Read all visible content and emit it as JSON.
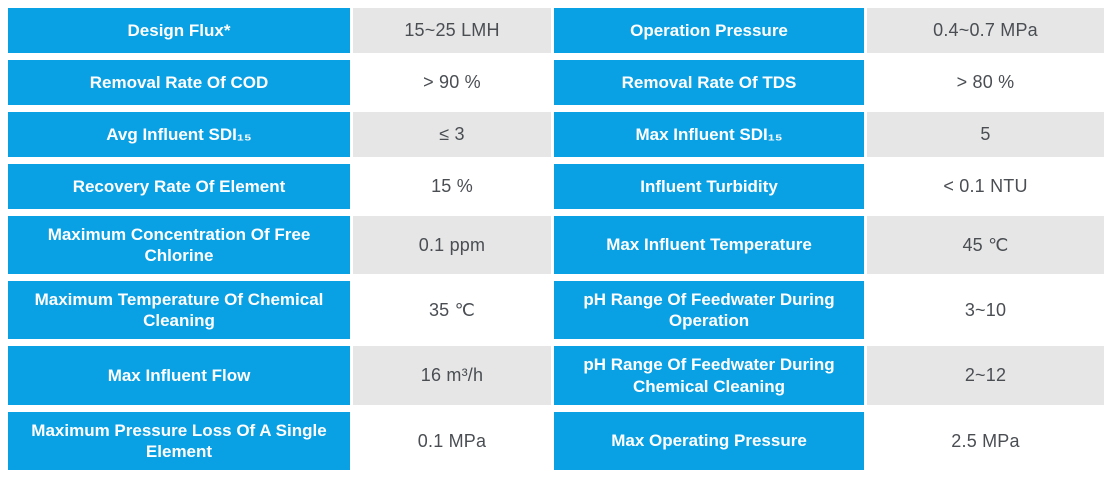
{
  "colors": {
    "label_background": "#0aa0e4",
    "label_text": "#ffffff",
    "value_shaded_background": "#e6e6e6",
    "value_text": "#4a4e53",
    "page_background": "#ffffff"
  },
  "table": {
    "description": "Membrane element technical specification table",
    "rows": [
      {
        "label1": "Design Flux*",
        "value1": "15~25 LMH",
        "label2": "Operation Pressure",
        "value2": "0.4~0.7 MPa"
      },
      {
        "label1": "Removal Rate Of COD",
        "value1": "> 90 %",
        "label2": "Removal Rate Of TDS",
        "value2": "> 80 %"
      },
      {
        "label1": "Avg Influent SDI₁₅",
        "value1": "≤ 3",
        "label2": "Max Influent SDI₁₅",
        "value2": "5"
      },
      {
        "label1": "Recovery Rate Of Element",
        "value1": "15 %",
        "label2": "Influent Turbidity",
        "value2": "< 0.1 NTU"
      },
      {
        "label1": "Maximum Concentration Of Free Chlorine",
        "value1": "0.1 ppm",
        "label2": "Max Influent Temperature",
        "value2": "45 ℃"
      },
      {
        "label1": "Maximum Temperature Of Chemical Cleaning",
        "value1": "35 ℃",
        "label2": "pH Range Of Feedwater During Operation",
        "value2": "3~10"
      },
      {
        "label1": "Max Influent Flow",
        "value1": "16 m³/h",
        "label2": "pH Range Of Feedwater During Chemical Cleaning",
        "value2": "2~12"
      },
      {
        "label1": "Maximum Pressure Loss Of A Single Element",
        "value1": "0.1 MPa",
        "label2": "Max Operating Pressure",
        "value2": "2.5 MPa"
      }
    ]
  }
}
